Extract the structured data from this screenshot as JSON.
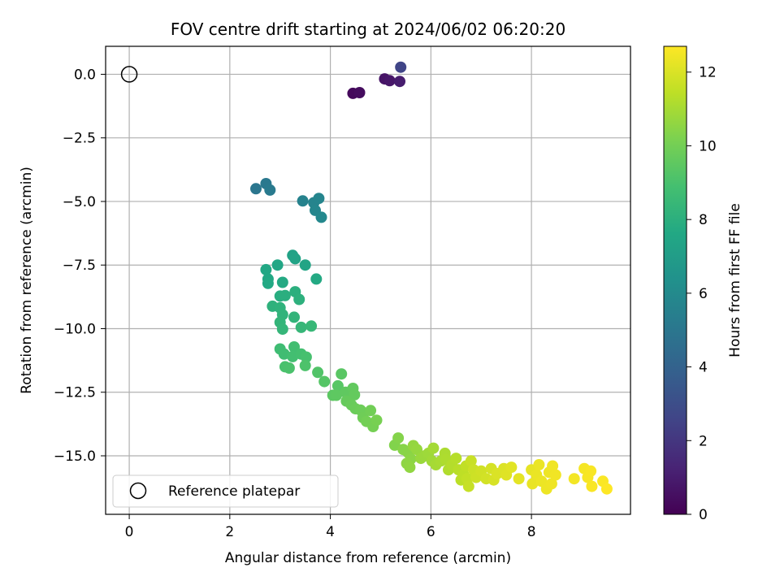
{
  "chart_data": {
    "type": "scatter",
    "title": "FOV centre drift starting at 2024/06/02 06:20:20",
    "xlabel": "Angular distance from reference (arcmin)",
    "ylabel": "Rotation from reference (arcmin)",
    "xlim": [
      -0.47,
      9.97
    ],
    "ylim": [
      -17.3,
      1.1
    ],
    "xticks": [
      0,
      2,
      4,
      6,
      8
    ],
    "xtick_labels": [
      "0",
      "2",
      "4",
      "6",
      "8"
    ],
    "yticks": [
      0,
      -2.5,
      -5,
      -7.5,
      -10,
      -12.5,
      -15
    ],
    "ytick_labels": [
      "0.0",
      "−2.5",
      "−5.0",
      "−7.5",
      "−10.0",
      "−12.5",
      "−15.0"
    ],
    "grid": true,
    "legend": {
      "position": "lower-left",
      "entries": [
        "Reference platepar"
      ]
    },
    "colorbar": {
      "label": "Hours from first FF file",
      "range": [
        0,
        12.7
      ],
      "ticks": [
        0,
        2,
        4,
        6,
        8,
        10,
        12
      ],
      "tick_labels": [
        "0",
        "2",
        "4",
        "6",
        "8",
        "10",
        "12"
      ],
      "colormap": "viridis"
    },
    "reference_point": {
      "x": 0,
      "y": 0
    },
    "colors": {
      "viridis": [
        "#440154",
        "#482475",
        "#414487",
        "#355f8d",
        "#2a788e",
        "#21918c",
        "#22a884",
        "#44bf70",
        "#7ad151",
        "#bddf26",
        "#fde725"
      ]
    },
    "series": [
      {
        "points": [
          [
            4.45,
            -0.75,
            0.3
          ],
          [
            4.58,
            -0.72,
            0.4
          ],
          [
            5.08,
            -0.18,
            0.7
          ],
          [
            5.18,
            -0.25,
            0.8
          ],
          [
            5.38,
            -0.28,
            1.0
          ],
          [
            5.4,
            0.28,
            2.6
          ],
          [
            2.52,
            -4.5,
            5.0
          ],
          [
            2.72,
            -4.3,
            5.1
          ],
          [
            2.8,
            -4.55,
            5.2
          ],
          [
            3.45,
            -4.98,
            5.6
          ],
          [
            3.67,
            -5.05,
            5.7
          ],
          [
            3.77,
            -4.88,
            5.75
          ],
          [
            3.7,
            -5.35,
            5.8
          ],
          [
            3.82,
            -5.62,
            5.9
          ],
          [
            3.25,
            -7.12,
            7.3
          ],
          [
            3.3,
            -7.25,
            7.35
          ],
          [
            3.5,
            -7.5,
            7.4
          ],
          [
            2.95,
            -7.5,
            7.5
          ],
          [
            2.72,
            -7.68,
            7.55
          ],
          [
            2.76,
            -8.05,
            7.6
          ],
          [
            2.76,
            -8.22,
            7.65
          ],
          [
            3.05,
            -8.18,
            7.7
          ],
          [
            3.72,
            -8.05,
            7.7
          ],
          [
            3.0,
            -8.72,
            7.9
          ],
          [
            3.1,
            -8.7,
            7.95
          ],
          [
            3.3,
            -8.55,
            8.0
          ],
          [
            3.38,
            -8.85,
            8.05
          ],
          [
            2.85,
            -9.12,
            8.1
          ],
          [
            3.0,
            -9.18,
            8.15
          ],
          [
            3.05,
            -9.45,
            8.2
          ],
          [
            3.28,
            -9.55,
            8.25
          ],
          [
            3.0,
            -9.75,
            8.3
          ],
          [
            3.05,
            -10.02,
            8.35
          ],
          [
            3.42,
            -9.95,
            8.4
          ],
          [
            3.62,
            -9.9,
            8.45
          ],
          [
            3.0,
            -10.8,
            8.7
          ],
          [
            3.08,
            -11.0,
            8.75
          ],
          [
            3.28,
            -10.72,
            8.8
          ],
          [
            3.25,
            -11.1,
            8.85
          ],
          [
            3.42,
            -11.0,
            8.9
          ],
          [
            3.52,
            -11.12,
            8.95
          ],
          [
            3.1,
            -11.5,
            9.0
          ],
          [
            3.18,
            -11.55,
            9.05
          ],
          [
            3.5,
            -11.45,
            9.1
          ],
          [
            3.75,
            -11.72,
            9.2
          ],
          [
            3.88,
            -12.08,
            9.3
          ],
          [
            4.15,
            -12.25,
            9.35
          ],
          [
            4.22,
            -11.78,
            9.4
          ],
          [
            4.05,
            -12.62,
            9.45
          ],
          [
            4.12,
            -12.62,
            9.5
          ],
          [
            4.3,
            -12.5,
            9.55
          ],
          [
            4.45,
            -12.35,
            9.6
          ],
          [
            4.48,
            -12.6,
            9.65
          ],
          [
            4.32,
            -12.85,
            9.7
          ],
          [
            4.42,
            -13.0,
            9.75
          ],
          [
            4.5,
            -13.15,
            9.8
          ],
          [
            4.6,
            -13.2,
            9.85
          ],
          [
            4.65,
            -13.5,
            9.9
          ],
          [
            4.8,
            -13.22,
            9.95
          ],
          [
            4.72,
            -13.65,
            10.0
          ],
          [
            4.85,
            -13.85,
            10.05
          ],
          [
            4.92,
            -13.6,
            10.1
          ],
          [
            5.28,
            -14.58,
            10.3
          ],
          [
            5.35,
            -14.3,
            10.35
          ],
          [
            5.45,
            -14.75,
            10.4
          ],
          [
            5.55,
            -14.88,
            10.45
          ],
          [
            5.6,
            -15.12,
            10.5
          ],
          [
            5.52,
            -15.3,
            10.55
          ],
          [
            5.58,
            -15.45,
            10.6
          ],
          [
            5.65,
            -14.6,
            10.65
          ],
          [
            5.72,
            -14.75,
            10.7
          ],
          [
            5.8,
            -15.1,
            10.75
          ],
          [
            5.88,
            -15.0,
            10.8
          ],
          [
            5.95,
            -14.9,
            10.85
          ],
          [
            6.02,
            -15.2,
            10.9
          ],
          [
            6.05,
            -14.7,
            10.95
          ],
          [
            6.1,
            -15.35,
            11.0
          ],
          [
            6.2,
            -15.2,
            11.05
          ],
          [
            6.28,
            -14.9,
            11.1
          ],
          [
            6.3,
            -15.15,
            11.15
          ],
          [
            6.35,
            -15.55,
            11.2
          ],
          [
            6.42,
            -15.35,
            11.25
          ],
          [
            6.5,
            -15.1,
            11.3
          ],
          [
            6.55,
            -15.55,
            11.35
          ],
          [
            6.6,
            -15.95,
            11.4
          ],
          [
            6.65,
            -15.75,
            11.45
          ],
          [
            6.7,
            -15.4,
            11.5
          ],
          [
            6.72,
            -15.9,
            11.55
          ],
          [
            6.75,
            -16.2,
            11.6
          ],
          [
            6.8,
            -15.2,
            11.65
          ],
          [
            6.85,
            -15.55,
            11.7
          ],
          [
            6.9,
            -15.85,
            11.75
          ],
          [
            7.0,
            -15.6,
            11.8
          ],
          [
            7.1,
            -15.9,
            11.85
          ],
          [
            7.2,
            -15.5,
            11.9
          ],
          [
            7.25,
            -15.95,
            11.95
          ],
          [
            7.32,
            -15.7,
            12.0
          ],
          [
            7.45,
            -15.5,
            12.05
          ],
          [
            7.5,
            -15.75,
            12.1
          ],
          [
            7.6,
            -15.45,
            12.15
          ],
          [
            7.75,
            -15.9,
            12.2
          ],
          [
            8.0,
            -15.55,
            12.25
          ],
          [
            8.02,
            -16.1,
            12.3
          ],
          [
            8.1,
            -15.75,
            12.32
          ],
          [
            8.15,
            -15.35,
            12.34
          ],
          [
            8.2,
            -16.0,
            12.36
          ],
          [
            8.3,
            -16.3,
            12.38
          ],
          [
            8.35,
            -15.65,
            12.4
          ],
          [
            8.4,
            -16.1,
            12.42
          ],
          [
            8.42,
            -15.4,
            12.44
          ],
          [
            8.48,
            -15.75,
            12.46
          ],
          [
            8.85,
            -15.9,
            12.5
          ],
          [
            9.05,
            -15.5,
            12.55
          ],
          [
            9.12,
            -15.85,
            12.58
          ],
          [
            9.18,
            -15.6,
            12.6
          ],
          [
            9.2,
            -16.2,
            12.62
          ],
          [
            9.42,
            -16.0,
            12.65
          ],
          [
            9.5,
            -16.3,
            12.7
          ]
        ]
      }
    ]
  }
}
